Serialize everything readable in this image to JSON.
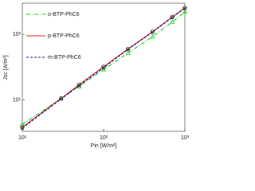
{
  "chart_data": {
    "type": "line",
    "x_label": "Pin [W/m²]",
    "y_label": "Jsc [A/m²]",
    "x": [
      10,
      30,
      50,
      100,
      200,
      400,
      700,
      1000
    ],
    "series": [
      {
        "name": "o-BTP-PhC6",
        "color": "#22cc22",
        "dash": "5,2,1,2",
        "marker": "triangle",
        "values": [
          4.2,
          10.5,
          16,
          29,
          52,
          92,
          155,
          220
        ]
      },
      {
        "name": "p-BTP-PhC6",
        "color": "#e02020",
        "dash": "none",
        "marker": "circle",
        "values": [
          3.8,
          10.5,
          17,
          32,
          60,
          110,
          185,
          255
        ]
      },
      {
        "name": "m-BTP-PhC6",
        "color": "#1a1aa8",
        "dash": "3,2",
        "marker": "cross",
        "values": [
          3.7,
          10.3,
          16.5,
          31,
          59,
          108,
          182,
          250
        ]
      }
    ],
    "xlim": [
      10,
      1000
    ],
    "ylim": [
      3.3,
      300
    ],
    "xticks": [
      {
        "value": 10,
        "label": "10¹"
      },
      {
        "value": 100,
        "label": "10²"
      },
      {
        "value": 1000,
        "label": "10³"
      }
    ],
    "yticks": [
      {
        "value": 10,
        "label": "10¹"
      },
      {
        "value": 100,
        "label": "10²"
      }
    ],
    "log_x": true,
    "log_y": true,
    "legend": "upper-left"
  }
}
